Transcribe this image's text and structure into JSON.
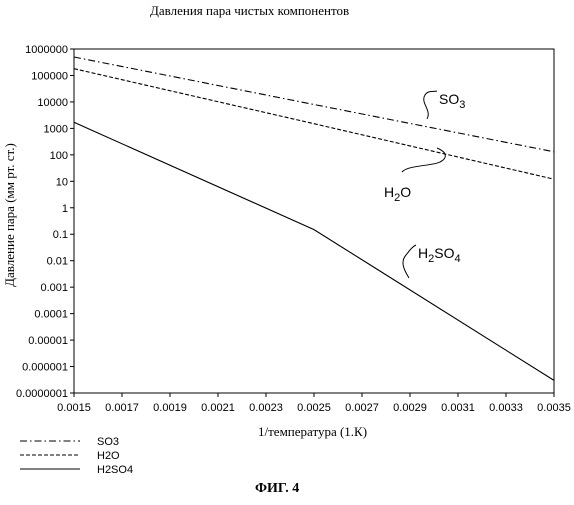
{
  "figure": {
    "title": "Давления пара чистых компонентов",
    "caption": "ФИГ. 4"
  },
  "chart_data": {
    "type": "line",
    "title": "Давления пара чистых компонентов",
    "xlabel": "1/температура (1.К)",
    "ylabel": "Давление пара (мм рт. ст.)",
    "x_scale": "linear",
    "y_scale": "log",
    "xlim": [
      0.0015,
      0.0035
    ],
    "ylim": [
      1e-07,
      1000000
    ],
    "x_ticks": [
      "0.0015",
      "0.0017",
      "0.0019",
      "0.0021",
      "0.0023",
      "0.0025",
      "0.0027",
      "0.0029",
      "0.0031",
      "0.0033",
      "0.0035"
    ],
    "y_ticks": [
      "1000000",
      "100000",
      "10000",
      "1000",
      "100",
      "10",
      "1",
      "0.1",
      "0.01",
      "0.001",
      "0.0001",
      "0.00001",
      "0.000001",
      "0.0000001"
    ],
    "grid": false,
    "legend_position": "bottom-left",
    "series": [
      {
        "name": "SO3",
        "label_main": "SO",
        "label_sub": "3",
        "style": "dash-dot",
        "x": [
          0.0015,
          0.0025,
          0.0035
        ],
        "y": [
          500000,
          8000,
          130
        ]
      },
      {
        "name": "H2O",
        "label_main": "H",
        "label_sub": "2",
        "label_tail": "O",
        "style": "dashed",
        "x": [
          0.0015,
          0.0025,
          0.0035
        ],
        "y": [
          180000,
          1500,
          12
        ]
      },
      {
        "name": "H2SO4",
        "label_main": "H",
        "label_sub": "2",
        "label_mid": "SO",
        "label_sub2": "4",
        "style": "solid",
        "x": [
          0.0015,
          0.0025,
          0.0035
        ],
        "y": [
          1700,
          0.15,
          3e-07
        ]
      }
    ]
  }
}
